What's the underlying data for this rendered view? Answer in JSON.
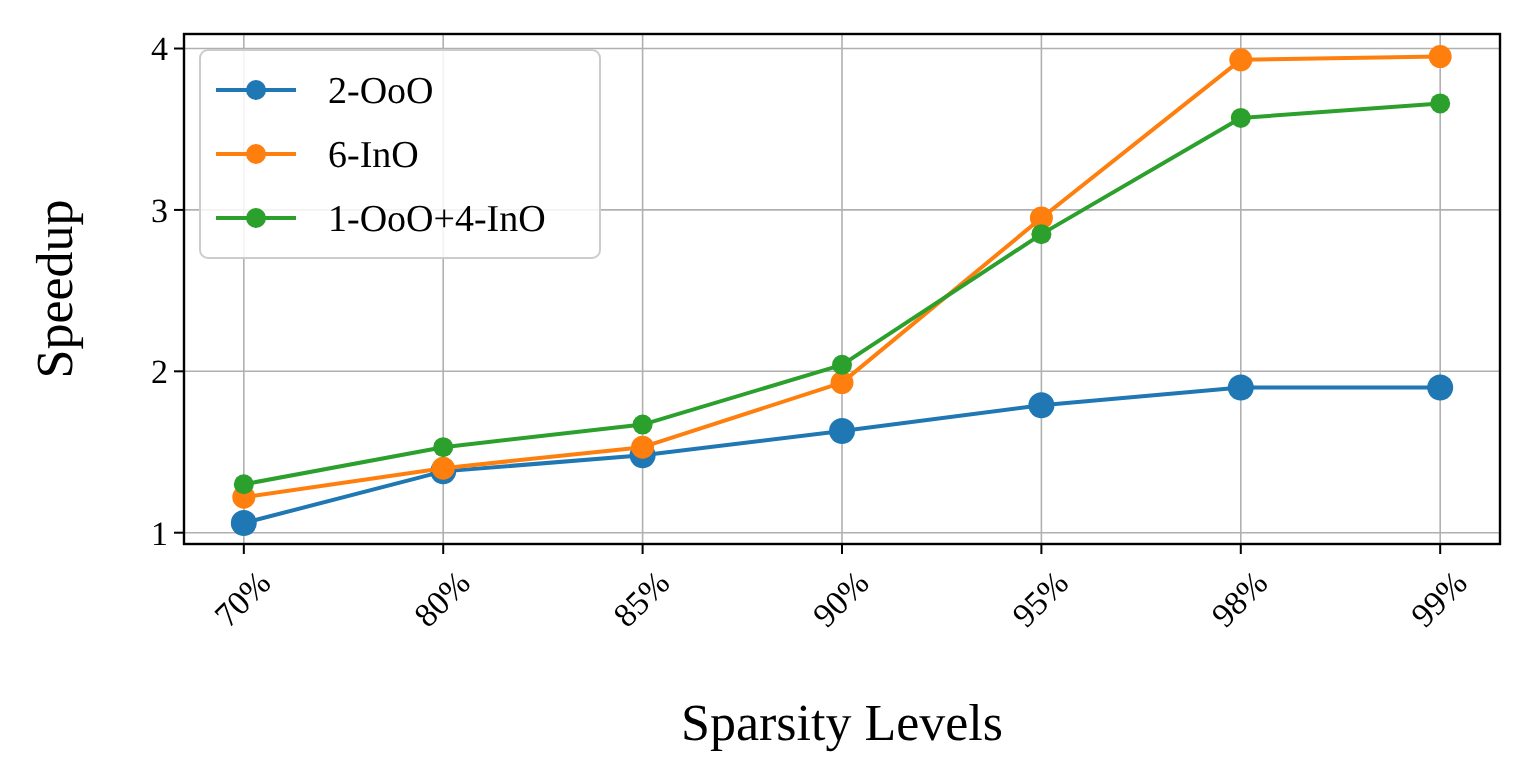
{
  "chart_data": {
    "type": "line",
    "xlabel": "Sparsity Levels",
    "ylabel": "Speedup",
    "categories": [
      "70%",
      "80%",
      "85%",
      "90%",
      "95%",
      "98%",
      "99%"
    ],
    "series": [
      {
        "name": "2-OoO",
        "color": "#1f77b4",
        "values": [
          1.06,
          1.38,
          1.48,
          1.63,
          1.79,
          1.9,
          1.9
        ]
      },
      {
        "name": "6-InO",
        "color": "#ff7f0e",
        "values": [
          1.22,
          1.4,
          1.53,
          1.93,
          2.95,
          3.93,
          3.95
        ]
      },
      {
        "name": "1-OoO+4-InO",
        "color": "#2ca02c",
        "values": [
          1.3,
          1.53,
          1.67,
          2.04,
          2.85,
          3.57,
          3.66
        ]
      }
    ],
    "ylim": [
      0.93,
      4.09
    ],
    "yticks": [
      1,
      2,
      3,
      4
    ],
    "grid": true,
    "legend": "top left",
    "marker": "circle",
    "line_style": "solid"
  }
}
